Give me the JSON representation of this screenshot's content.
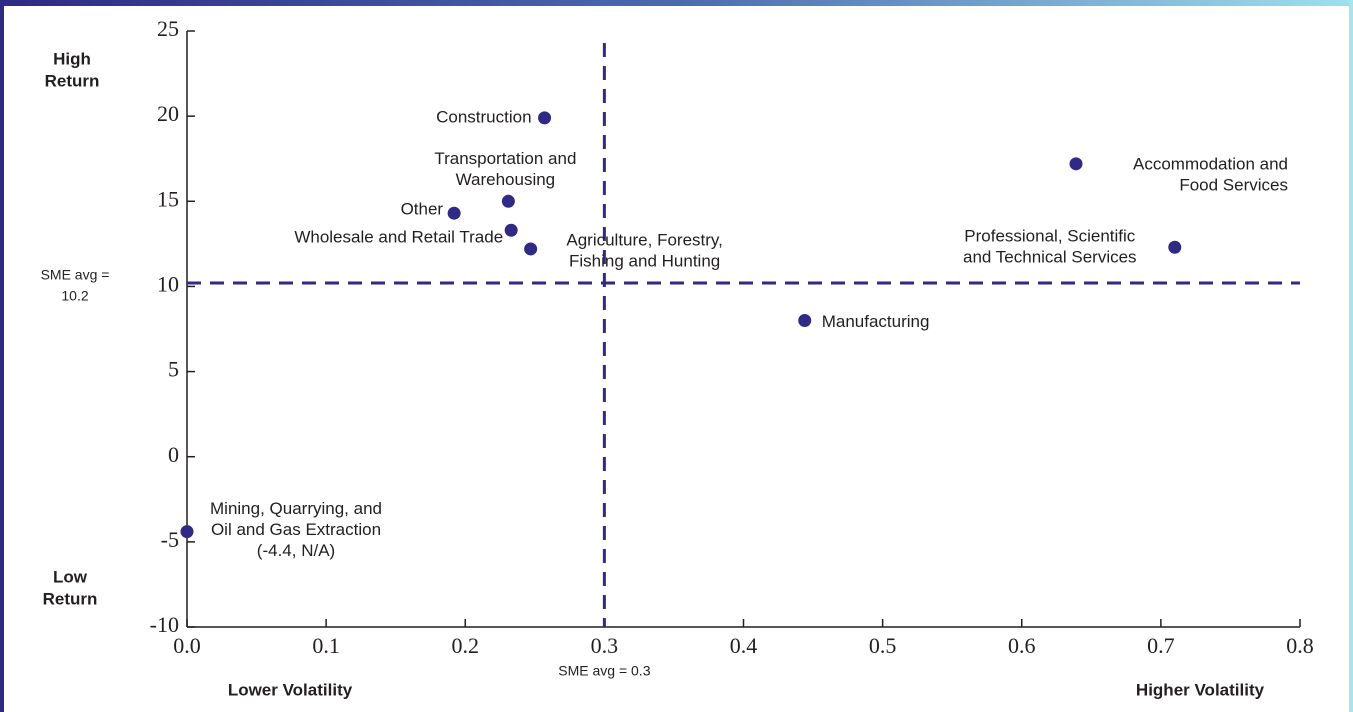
{
  "chart_data": {
    "type": "scatter",
    "color": "#2e2a85",
    "x": [
      0.257,
      0.231,
      0.192,
      0.233,
      0.247,
      0.639,
      0.71,
      0.444,
      0
    ],
    "values": [
      19.9,
      15.0,
      14.3,
      13.3,
      12.2,
      17.2,
      12.3,
      8.0,
      -4.4
    ],
    "point_labels": [
      [
        "Construction"
      ],
      [
        "Transportation and",
        "Warehousing"
      ],
      [
        "Other"
      ],
      [
        "Wholesale and Retail Trade"
      ],
      [
        "Agriculture, Forestry,",
        "Fishing and Hunting"
      ],
      [
        "Accommodation and",
        "Food Services"
      ],
      [
        "Professional, Scientific",
        "and Technical Services"
      ],
      [
        "Manufacturing"
      ],
      [
        "Mining, Quarrying, and",
        "Oil and Gas Extraction",
        "(-4.4, N/A)"
      ]
    ],
    "xlim": [
      0,
      0.8
    ],
    "ylim": [
      -10,
      25
    ],
    "xticks": [
      {
        "value": 0,
        "label": "0.0"
      },
      0.1,
      0.2,
      0.3,
      0.4,
      0.5,
      0.6,
      0.7,
      0.8
    ],
    "yticks": [
      -10,
      -5,
      0,
      5,
      10,
      15,
      20,
      25
    ],
    "reference_lines": [
      {
        "axis": "x",
        "value": 0.3,
        "label": [
          "SME avg = 0.3"
        ]
      },
      {
        "axis": "y",
        "value": 10.2,
        "label": [
          "SME avg =",
          "10.2"
        ]
      }
    ],
    "y_labels": {
      "high": [
        "High",
        "Return"
      ],
      "low": [
        "Low",
        "Return"
      ]
    },
    "x_labels": {
      "low": "Lower Volatility",
      "high": "Higher Volatility"
    }
  }
}
